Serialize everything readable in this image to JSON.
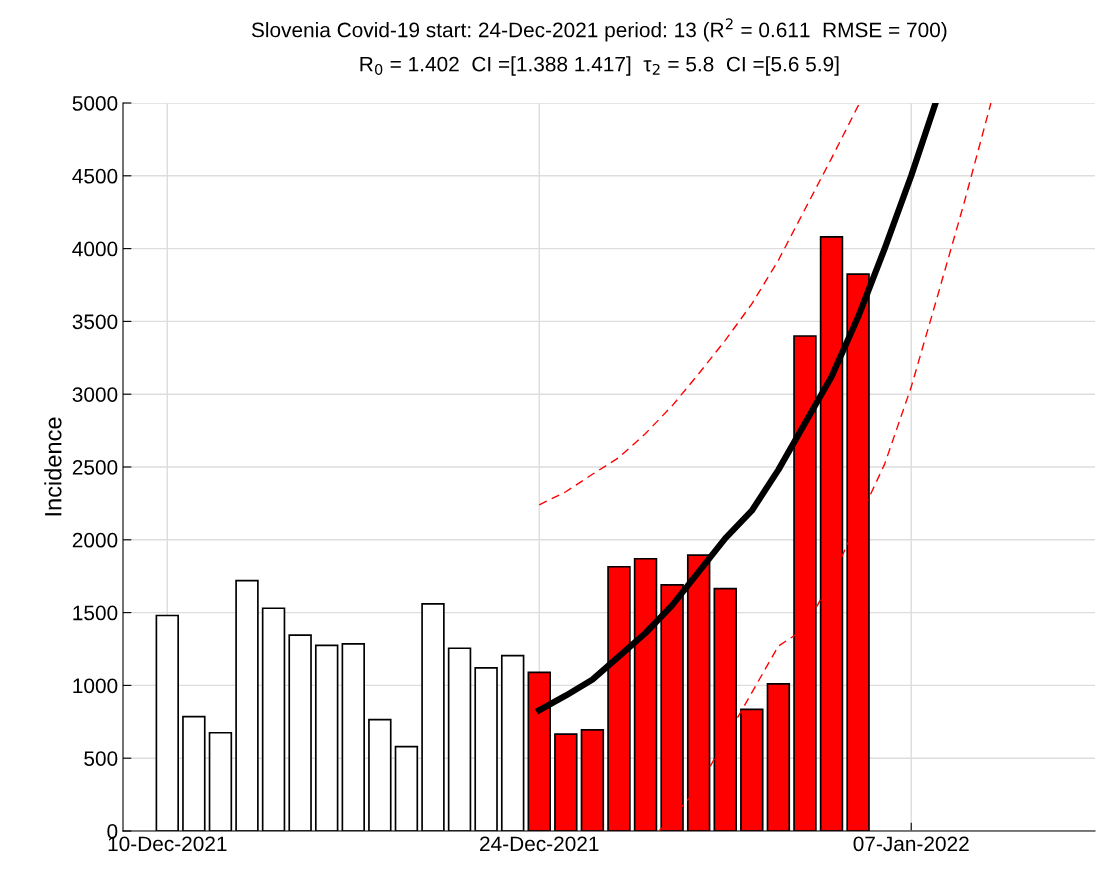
{
  "chart_data": {
    "type": "bar",
    "title": "Slovenia Covid-19 start: 24-Dec-2021 period: 13 (R$^{2}$ = 0.611  RMSE = 700)",
    "subtitle": "R$_{0}$ = 1.402  CI =[1.388 1.417]  τ$_{2}$ = 5.8  CI =[5.6 5.9]",
    "ylabel": "Incidence",
    "xlim": [
      "2021-12-08T08:00",
      "2022-01-13T22:00"
    ],
    "xticks": [
      {
        "value": "2021-12-10",
        "label": "10-Dec-2021"
      },
      {
        "value": "2021-12-24",
        "label": "24-Dec-2021"
      },
      {
        "value": "2022-01-07",
        "label": "07-Jan-2022"
      }
    ],
    "ylim": [
      0,
      5000
    ],
    "yticks": [
      0,
      500,
      1000,
      1500,
      2000,
      2500,
      3000,
      3500,
      4000,
      4500,
      5000
    ],
    "grid": true,
    "series": [
      {
        "x": [
          "2021-12-10",
          "2021-12-11",
          "2021-12-12",
          "2021-12-13",
          "2021-12-14",
          "2021-12-15",
          "2021-12-16",
          "2021-12-17",
          "2021-12-18",
          "2021-12-19",
          "2021-12-20",
          "2021-12-21",
          "2021-12-22",
          "2021-12-23",
          "2021-12-24",
          "2021-12-25",
          "2021-12-26",
          "2021-12-27",
          "2021-12-28",
          "2021-12-29",
          "2021-12-30",
          "2021-12-31",
          "2022-01-01",
          "2022-01-02",
          "2022-01-03",
          "2022-01-04",
          "2022-01-05"
        ],
        "values": [
          1480,
          785,
          675,
          1720,
          1530,
          1345,
          1275,
          1285,
          765,
          580,
          1560,
          1255,
          1120,
          1205,
          1090,
          665,
          695,
          1815,
          1870,
          1690,
          1895,
          1665,
          835,
          1010,
          3400,
          4080,
          3825
        ],
        "colors": [
          "#ffffff",
          "#ffffff",
          "#ffffff",
          "#ffffff",
          "#ffffff",
          "#ffffff",
          "#ffffff",
          "#ffffff",
          "#ffffff",
          "#ffffff",
          "#ffffff",
          "#ffffff",
          "#ffffff",
          "#ffffff",
          "#ff0000",
          "#ff0000",
          "#ff0000",
          "#ff0000",
          "#ff0000",
          "#ff0000",
          "#ff0000",
          "#ff0000",
          "#ff0000",
          "#ff0000",
          "#ff0000",
          "#ff0000",
          "#ff0000"
        ]
      },
      {
        "type": "line",
        "color": "#000000",
        "line_style": "solid",
        "x": [
          "2021-12-24",
          "2021-12-25",
          "2021-12-26",
          "2021-12-27",
          "2021-12-28",
          "2021-12-29",
          "2021-12-30",
          "2021-12-31",
          "2022-01-01",
          "2022-01-02",
          "2022-01-03",
          "2022-01-04",
          "2022-01-05",
          "2022-01-06",
          "2022-01-07",
          "2022-01-07T22:00"
        ],
        "values": [
          830,
          930,
          1040,
          1200,
          1360,
          1550,
          1780,
          2010,
          2200,
          2480,
          2800,
          3120,
          3530,
          4000,
          4500,
          5000
        ]
      },
      {
        "type": "line",
        "color": "#ff0000",
        "line_style": "dashed",
        "x": [
          "2021-12-24",
          "2021-12-25",
          "2021-12-26",
          "2021-12-27",
          "2021-12-28",
          "2021-12-29",
          "2021-12-30",
          "2021-12-31",
          "2022-01-01",
          "2022-01-02",
          "2022-01-03",
          "2022-01-04",
          "2022-01-05",
          "2022-01-05T05:00"
        ],
        "values": [
          2240,
          2330,
          2450,
          2565,
          2730,
          2920,
          3140,
          3370,
          3620,
          3920,
          4270,
          4620,
          4980,
          5000
        ]
      },
      {
        "type": "line",
        "color": "#ff0000",
        "line_style": "dashed",
        "x": [
          "2021-12-28T12:00",
          "2021-12-29",
          "2021-12-30",
          "2021-12-31",
          "2022-01-01",
          "2022-01-02",
          "2022-01-03",
          "2022-01-04",
          "2022-01-05",
          "2022-01-06",
          "2022-01-07",
          "2022-01-08",
          "2022-01-09",
          "2022-01-10"
        ],
        "values": [
          0,
          90,
          300,
          630,
          950,
          1270,
          1390,
          1730,
          2130,
          2520,
          3050,
          3680,
          4320,
          5000
        ]
      }
    ]
  }
}
